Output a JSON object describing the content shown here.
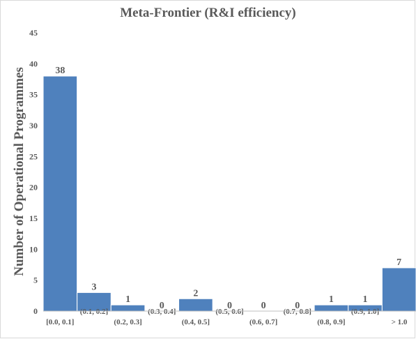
{
  "chart_data": {
    "type": "bar",
    "title": "Meta-Frontier (R&I efficiency)",
    "xlabel": "",
    "ylabel": "Number of Operational Programmes",
    "ylim": [
      0,
      45
    ],
    "yticks": [
      0,
      5,
      10,
      15,
      20,
      25,
      30,
      35,
      40,
      45
    ],
    "grid": false,
    "legend": "none",
    "categories": [
      "[0.0, 0.1]",
      "(0.1, 0.2]",
      "(0.2, 0.3]",
      "(0.3, 0.4]",
      "(0.4, 0.5]",
      "(0.5, 0.6]",
      "(0.6, 0.7]",
      "(0.7, 0.8]",
      "(0.8, 0.9]",
      "(0.9, 1.0]",
      "> 1.0"
    ],
    "values": [
      38,
      3,
      1,
      0,
      2,
      0,
      0,
      0,
      1,
      1,
      7
    ],
    "bar_color": "#4f81bd",
    "text_color": "#595959"
  }
}
